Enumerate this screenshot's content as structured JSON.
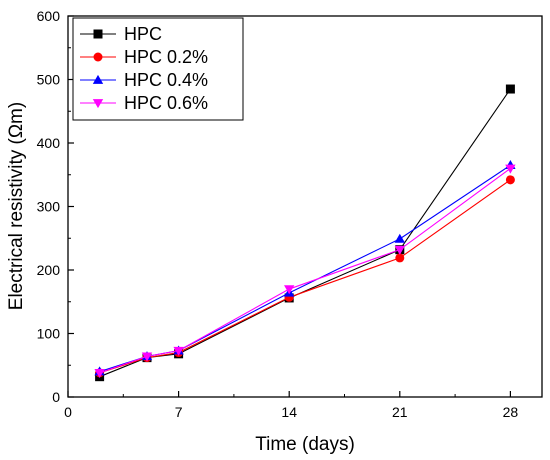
{
  "chart_data": {
    "type": "line",
    "xlabel": "Time (days)",
    "ylabel": "Electrical resistivity (Ωm)",
    "xlim": [
      0,
      30
    ],
    "ylim": [
      0,
      600
    ],
    "x_ticks": [
      0,
      7,
      14,
      21,
      28
    ],
    "y_ticks": [
      0,
      100,
      200,
      300,
      400,
      500,
      600
    ],
    "legend_position": "top-left",
    "grid": false,
    "series": [
      {
        "name": "HPC",
        "color": "#000000",
        "marker": "square",
        "x": [
          2,
          5,
          7,
          14,
          21,
          28
        ],
        "y": [
          32,
          62,
          68,
          156,
          232,
          485
        ]
      },
      {
        "name": "HPC 0.2%",
        "color": "#ff0000",
        "marker": "circle",
        "x": [
          2,
          5,
          7,
          14,
          21,
          28
        ],
        "y": [
          38,
          62,
          70,
          157,
          219,
          342
        ]
      },
      {
        "name": "HPC 0.4%",
        "color": "#0000ff",
        "marker": "triangle-up",
        "x": [
          2,
          5,
          7,
          14,
          21,
          28
        ],
        "y": [
          40,
          64,
          73,
          164,
          249,
          365
        ]
      },
      {
        "name": "HPC 0.6%",
        "color": "#ff00ff",
        "marker": "triangle-down",
        "x": [
          2,
          5,
          7,
          14,
          21,
          28
        ],
        "y": [
          38,
          64,
          73,
          170,
          232,
          360
        ]
      }
    ]
  }
}
